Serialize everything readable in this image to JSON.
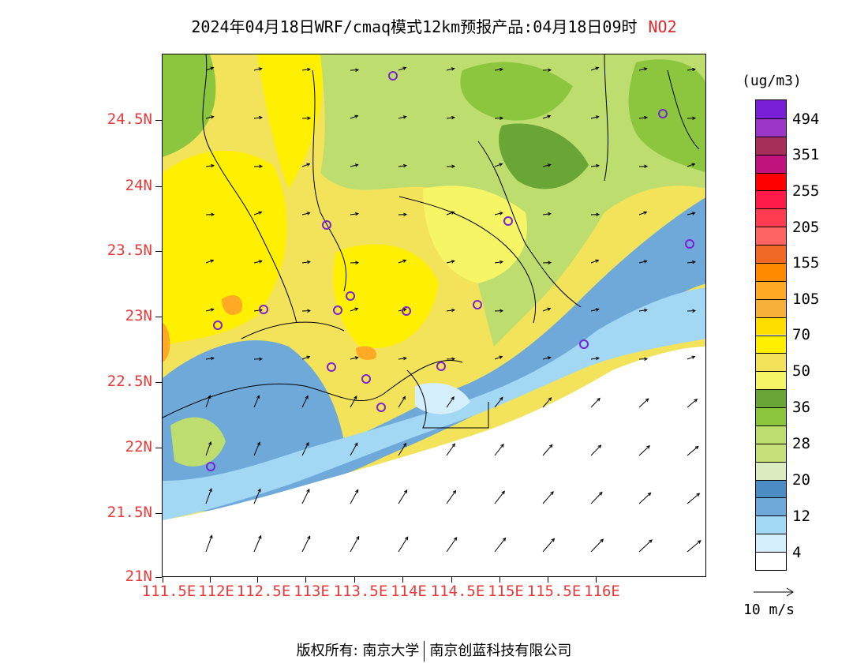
{
  "title": {
    "main": "2024年04月18日WRF/cmaq模式12km预报产品:04月18日09时",
    "pollutant": "NO2"
  },
  "axes": {
    "lat_labels": [
      "24.5N",
      "24N",
      "23.5N",
      "23N",
      "22.5N",
      "22N",
      "21.5N",
      "21N"
    ],
    "lon_labels": [
      "111.5E",
      "112E",
      "112.5E",
      "113E",
      "113.5E",
      "114E",
      "114.5E",
      "115E",
      "115.5E",
      "116E"
    ]
  },
  "legend": {
    "unit": "(ug/m3)",
    "labels": [
      "494",
      "351",
      "255",
      "205",
      "155",
      "105",
      "70",
      "50",
      "36",
      "28",
      "20",
      "12",
      "4"
    ],
    "colors": [
      "#7a1fd8",
      "#9a37c8",
      "#a72d5a",
      "#c2127d",
      "#ff0000",
      "#ff1a4a",
      "#ff3c50",
      "#ff6464",
      "#f06a26",
      "#ff8a00",
      "#ffa925",
      "#f7b13a",
      "#ffde00",
      "#fff000",
      "#f3e35b",
      "#f5f566",
      "#6aa636",
      "#8cc63f",
      "#bddd6e",
      "#c8e07a",
      "#dcebc0",
      "#4b8cc2",
      "#6ea9d9",
      "#a2d8f3",
      "#d4eefc",
      "#ffffff"
    ]
  },
  "wind_reference": {
    "label": "10 m/s"
  },
  "footer": {
    "copyright": "版权所有: 南京大学",
    "company": "南京创蓝科技有限公司"
  },
  "colors": {
    "axis_label": "#e83a3a",
    "station_marker": "#7b22d4"
  }
}
